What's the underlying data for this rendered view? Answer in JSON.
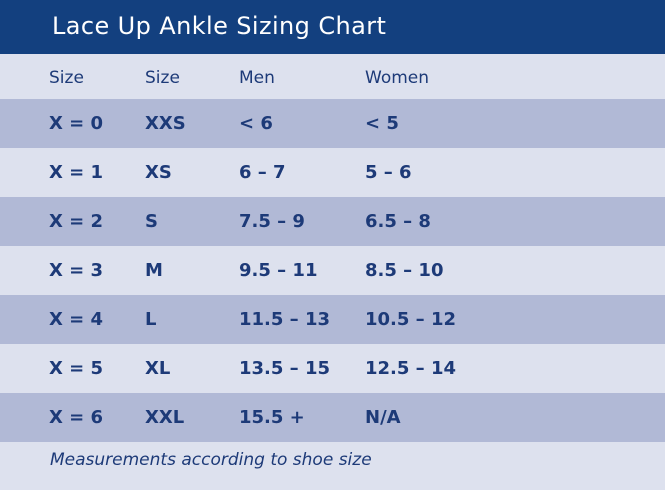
{
  "title": "Lace Up Ankle Sizing Chart",
  "columns": [
    "Size",
    "Size",
    "Men",
    "Women"
  ],
  "rows": [
    [
      "X = 0",
      "XXS",
      "< 6",
      "< 5"
    ],
    [
      "X = 1",
      "XS",
      "6 – 7",
      "5 – 6"
    ],
    [
      "X = 2",
      "S",
      "7.5 – 9",
      "6.5 – 8"
    ],
    [
      "X = 3",
      "M",
      "9.5 – 11",
      "8.5 – 10"
    ],
    [
      "X = 4",
      "L",
      "11.5 – 13",
      "10.5 – 12"
    ],
    [
      "X = 5",
      "XL",
      "13.5 – 15",
      "12.5 – 14"
    ],
    [
      "X = 6",
      "XXL",
      "15.5 +",
      "N/A"
    ]
  ],
  "footnote": "Measurements according to shoe size",
  "colors": {
    "title_bar": "#13407f",
    "row_light": "#dde1ee",
    "row_dark": "#b1b9d6",
    "text": "#1d3a78"
  }
}
